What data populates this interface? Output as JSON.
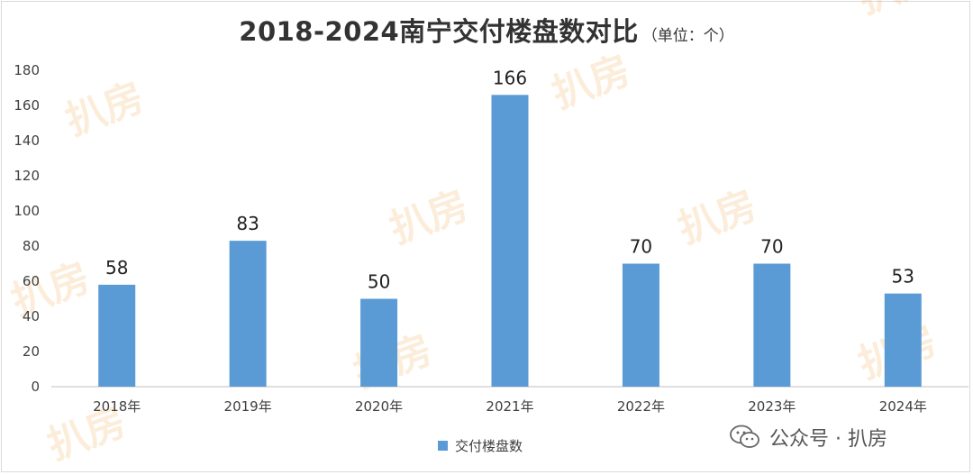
{
  "title": "2018-2024南宁交付楼盘数对比",
  "unit_note": "（单位：个）",
  "legend_label": "交付楼盘数",
  "credit": "公众号 · 扒房",
  "watermark_text": "扒房",
  "colors": {
    "bar": "#5b9bd5",
    "axis": "#bfbfbf",
    "text": "#404040",
    "watermark": "#f5c07a"
  },
  "chart_data": {
    "type": "bar",
    "title": "2018-2024南宁交付楼盘数对比",
    "unit": "（单位：个）",
    "categories": [
      "2018年",
      "2019年",
      "2020年",
      "2021年",
      "2022年",
      "2023年",
      "2024年"
    ],
    "series": [
      {
        "name": "交付楼盘数",
        "values": [
          58,
          83,
          50,
          166,
          70,
          70,
          53
        ]
      }
    ],
    "ylim": [
      0,
      180
    ],
    "yticks": [
      0,
      20,
      40,
      60,
      80,
      100,
      120,
      140,
      160,
      180
    ],
    "data_labels": true,
    "grid": false,
    "legend": "bottom"
  }
}
